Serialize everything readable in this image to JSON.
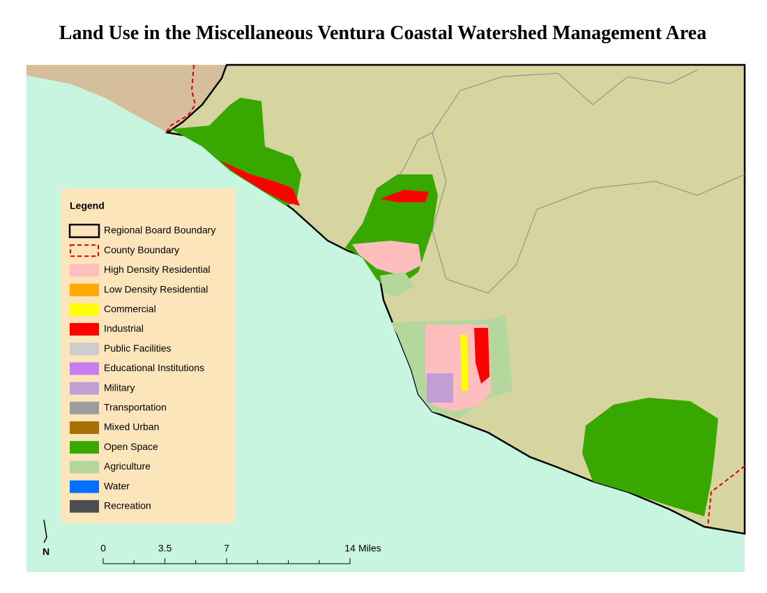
{
  "title": "Land Use in the Miscellaneous Ventura Coastal Watershed Management Area",
  "legend": {
    "title": "Legend",
    "items": [
      {
        "label": "Regional Board Boundary",
        "swatch": "outline",
        "color": "#000000"
      },
      {
        "label": "County Boundary",
        "swatch": "dashed",
        "color": "#e00000"
      },
      {
        "label": "High Density Residential",
        "swatch": "fill",
        "color": "#ffbebe"
      },
      {
        "label": "Low Density Residential",
        "swatch": "fill",
        "color": "#ffaa00"
      },
      {
        "label": "Commercial",
        "swatch": "fill",
        "color": "#ffff00"
      },
      {
        "label": "Industrial",
        "swatch": "fill",
        "color": "#ff0000"
      },
      {
        "label": "Public Facilities",
        "swatch": "fill",
        "color": "#cccccc"
      },
      {
        "label": "Educational Institutions",
        "swatch": "fill",
        "color": "#c77cf0"
      },
      {
        "label": "Military",
        "swatch": "fill",
        "color": "#c29ed7"
      },
      {
        "label": "Transportation",
        "swatch": "fill",
        "color": "#9c9c9c"
      },
      {
        "label": "Mixed Urban",
        "swatch": "fill",
        "color": "#a87000"
      },
      {
        "label": "Open Space",
        "swatch": "fill",
        "color": "#38a800"
      },
      {
        "label": "Agriculture",
        "swatch": "fill",
        "color": "#b4d79e"
      },
      {
        "label": "Water",
        "swatch": "fill",
        "color": "#0070ff"
      },
      {
        "label": "Recreation",
        "swatch": "fill",
        "color": "#4e4e4e"
      }
    ]
  },
  "scale_bar": {
    "ticks": [
      0,
      3.5,
      7,
      14
    ],
    "unit": "Miles"
  },
  "north_arrow": "N"
}
